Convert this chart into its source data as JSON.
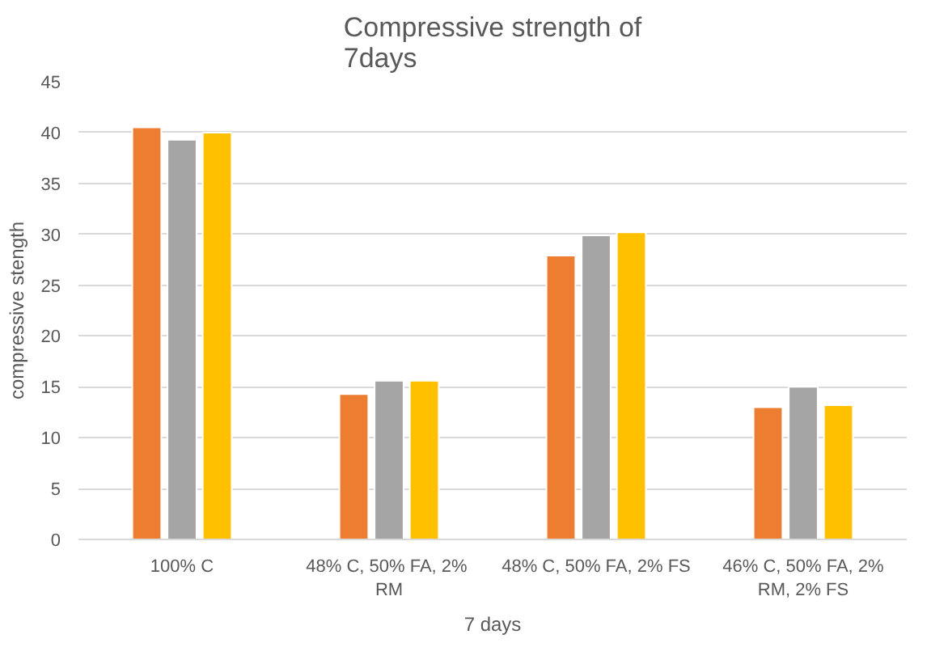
{
  "chart_data": {
    "type": "bar",
    "title": "Compressive strength of 7days",
    "xlabel": "7 days",
    "ylabel": "compressive stength",
    "categories": [
      "100% C",
      "48%  C, 50% FA, 2% RM",
      "48% C, 50% FA, 2% FS",
      "46% C, 50% FA, 2% RM, 2% FS"
    ],
    "series": [
      {
        "color": "#ed7d31",
        "values": [
          40.5,
          14.3,
          27.9,
          13.0
        ]
      },
      {
        "color": "#a5a5a5",
        "values": [
          39.3,
          15.6,
          29.9,
          15.0
        ]
      },
      {
        "color": "#ffc000",
        "values": [
          40.0,
          15.6,
          30.2,
          13.2
        ]
      }
    ],
    "ylim": [
      0,
      45
    ],
    "yticks": [
      0,
      5,
      10,
      15,
      20,
      25,
      30,
      35,
      40,
      45
    ],
    "grid": "y"
  }
}
